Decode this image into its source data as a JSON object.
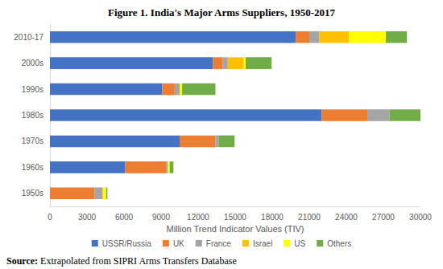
{
  "chart_data": {
    "type": "bar",
    "title": "Figure 1. India's Major Arms Suppliers, 1950-2017",
    "x_label": "Million Trend Indicator Values (TIV)",
    "source": "Source: Extrapolated from SIPRI Arms Transfers Database",
    "orientation": "horizontal",
    "stacked": true,
    "grid": false,
    "legend": "bottom",
    "categories": [
      "1950s",
      "1960s",
      "1970s",
      "1980s",
      "1990s",
      "2000s",
      "2010-17"
    ],
    "series": [
      {
        "name": "USSR/Russia",
        "color": "#4472c4",
        "values": [
          0,
          6100,
          10500,
          22000,
          9100,
          13200,
          19900
        ]
      },
      {
        "name": "UK",
        "color": "#ed7d31",
        "values": [
          3600,
          3300,
          2900,
          3700,
          1000,
          800,
          1100
        ]
      },
      {
        "name": "France",
        "color": "#a5a5a5",
        "values": [
          650,
          150,
          250,
          1800,
          400,
          400,
          800
        ]
      },
      {
        "name": "Israel",
        "color": "#ffc000",
        "values": [
          50,
          0,
          0,
          0,
          0,
          1300,
          2400
        ]
      },
      {
        "name": "US",
        "color": "#ffff00",
        "values": [
          250,
          150,
          0,
          0,
          200,
          150,
          3000
        ]
      },
      {
        "name": "Others",
        "color": "#70ad47",
        "values": [
          100,
          300,
          1300,
          2500,
          2700,
          2100,
          1700
        ]
      }
    ],
    "xlim": [
      0,
      30000
    ],
    "xticks": [
      0,
      3000,
      6000,
      9000,
      12000,
      15000,
      18000,
      21000,
      24000,
      27000,
      30000
    ]
  }
}
